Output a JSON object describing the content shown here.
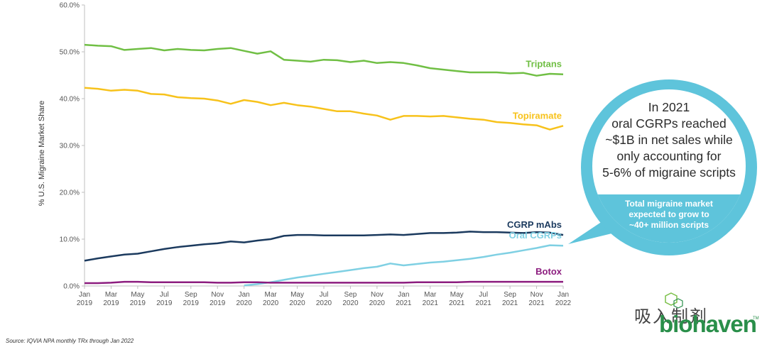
{
  "chart_data": {
    "type": "line",
    "title": "",
    "ylabel": "% U.S. Migraine Market Share",
    "ylim": [
      0,
      60
    ],
    "y_ticks": [
      "0.0%",
      "10.0%",
      "20.0%",
      "30.0%",
      "40.0%",
      "50.0%",
      "60.0%"
    ],
    "x_ticks": [
      {
        "month": "Jan",
        "year": "2019"
      },
      {
        "month": "Mar",
        "year": "2019"
      },
      {
        "month": "May",
        "year": "2019"
      },
      {
        "month": "Jul",
        "year": "2019"
      },
      {
        "month": "Sep",
        "year": "2019"
      },
      {
        "month": "Nov",
        "year": "2019"
      },
      {
        "month": "Jan",
        "year": "2020"
      },
      {
        "month": "Mar",
        "year": "2020"
      },
      {
        "month": "May",
        "year": "2020"
      },
      {
        "month": "Jul",
        "year": "2020"
      },
      {
        "month": "Sep",
        "year": "2020"
      },
      {
        "month": "Nov",
        "year": "2020"
      },
      {
        "month": "Jan",
        "year": "2021"
      },
      {
        "month": "Mar",
        "year": "2021"
      },
      {
        "month": "May",
        "year": "2021"
      },
      {
        "month": "Jul",
        "year": "2021"
      },
      {
        "month": "Sep",
        "year": "2021"
      },
      {
        "month": "Nov",
        "year": "2021"
      },
      {
        "month": "Jan",
        "year": "2022"
      }
    ],
    "x": [
      "Jan 2019",
      "Feb 2019",
      "Mar 2019",
      "Apr 2019",
      "May 2019",
      "Jun 2019",
      "Jul 2019",
      "Aug 2019",
      "Sep 2019",
      "Oct 2019",
      "Nov 2019",
      "Dec 2019",
      "Jan 2020",
      "Feb 2020",
      "Mar 2020",
      "Apr 2020",
      "May 2020",
      "Jun 2020",
      "Jul 2020",
      "Aug 2020",
      "Sep 2020",
      "Oct 2020",
      "Nov 2020",
      "Dec 2020",
      "Jan 2021",
      "Feb 2021",
      "Mar 2021",
      "Apr 2021",
      "May 2021",
      "Jun 2021",
      "Jul 2021",
      "Aug 2021",
      "Sep 2021",
      "Oct 2021",
      "Nov 2021",
      "Dec 2021",
      "Jan 2022"
    ],
    "series": [
      {
        "name": "Triptans",
        "color": "#70bf44",
        "values": [
          51.5,
          51.3,
          51.2,
          50.4,
          50.6,
          50.8,
          50.3,
          50.6,
          50.4,
          50.3,
          50.6,
          50.8,
          50.2,
          49.6,
          50.1,
          48.3,
          48.1,
          47.9,
          48.3,
          48.2,
          47.8,
          48.1,
          47.6,
          47.8,
          47.6,
          47.1,
          46.5,
          46.2,
          45.9,
          45.6,
          45.6,
          45.6,
          45.4,
          45.5,
          44.9,
          45.3,
          45.2
        ]
      },
      {
        "name": "Topiramate",
        "color": "#f7c21b",
        "values": [
          42.3,
          42.1,
          41.7,
          41.9,
          41.7,
          41.0,
          40.9,
          40.3,
          40.1,
          40.0,
          39.6,
          38.9,
          39.7,
          39.3,
          38.6,
          39.1,
          38.6,
          38.3,
          37.8,
          37.3,
          37.3,
          36.8,
          36.4,
          35.5,
          36.3,
          36.3,
          36.2,
          36.3,
          36.0,
          35.7,
          35.5,
          35.0,
          34.8,
          34.5,
          34.3,
          33.4,
          34.2
        ]
      },
      {
        "name": "CGRP mAbs",
        "color": "#1b3a5e",
        "values": [
          5.4,
          5.9,
          6.3,
          6.7,
          6.9,
          7.4,
          7.9,
          8.3,
          8.6,
          8.9,
          9.1,
          9.5,
          9.3,
          9.7,
          10.0,
          10.7,
          10.9,
          10.9,
          10.8,
          10.8,
          10.8,
          10.8,
          10.9,
          11.0,
          10.9,
          11.1,
          11.3,
          11.3,
          11.4,
          11.6,
          11.5,
          11.5,
          11.4,
          11.3,
          11.5,
          11.4,
          10.9
        ]
      },
      {
        "name": "Oral CGRPs",
        "color": "#7fd0e3",
        "start_index": 12,
        "values": [
          null,
          null,
          null,
          null,
          null,
          null,
          null,
          null,
          null,
          null,
          null,
          null,
          0.1,
          0.4,
          0.8,
          1.3,
          1.8,
          2.2,
          2.6,
          3.0,
          3.4,
          3.8,
          4.1,
          4.8,
          4.4,
          4.7,
          5.0,
          5.2,
          5.5,
          5.8,
          6.2,
          6.7,
          7.1,
          7.6,
          8.1,
          8.7,
          8.6
        ]
      },
      {
        "name": "Botox",
        "color": "#8c1d7f",
        "values": [
          0.6,
          0.6,
          0.7,
          0.9,
          0.9,
          0.8,
          0.8,
          0.8,
          0.8,
          0.8,
          0.7,
          0.7,
          0.8,
          0.8,
          0.7,
          0.7,
          0.7,
          0.7,
          0.7,
          0.7,
          0.7,
          0.7,
          0.7,
          0.7,
          0.7,
          0.8,
          0.8,
          0.8,
          0.8,
          0.9,
          0.9,
          0.9,
          0.9,
          0.9,
          0.9,
          0.9,
          0.9
        ]
      }
    ]
  },
  "callout": {
    "main_lines": [
      "In 2021",
      "oral CGRPs reached",
      "~$1B in net sales while",
      "only accounting for",
      "5-6% of migraine scripts"
    ],
    "sub_lines": [
      "Total migraine market",
      "expected to grow to",
      "~40+ million scripts"
    ],
    "color": "#5ec4db"
  },
  "footer": {
    "source": "Source: IQVIA NPA monthly TRx through Jan 2022",
    "watermark": "吸入制剂",
    "brand": "biohaven",
    "brand_tm": "TM",
    "brand_color": "#2a8f4a"
  }
}
